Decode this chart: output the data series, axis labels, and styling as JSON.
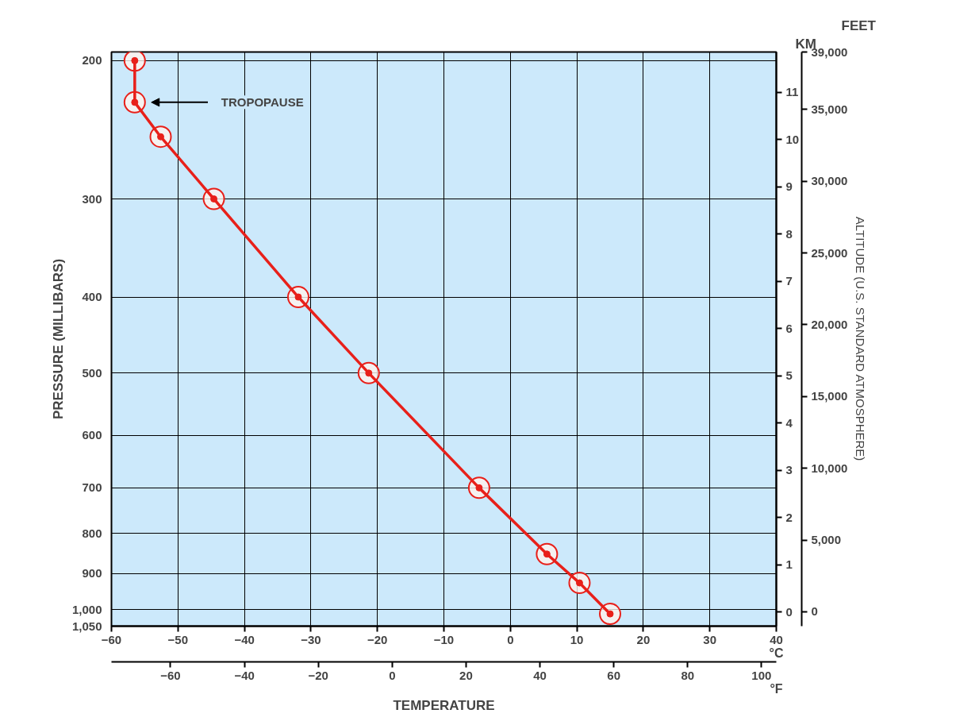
{
  "chart_data": {
    "type": "line",
    "xlabel": "TEMPERATURE",
    "ylabel": "PRESSURE (MILLIBARS)",
    "y3label": "ALTITUDE (U.S. STANDARD ATMOSPHERE)",
    "annotations": [
      "KM",
      "FEET",
      "°C",
      "°F",
      "TROPOPAUSE"
    ],
    "x": [
      15,
      10.4,
      5.5,
      -4.7,
      -21.3,
      -31.9,
      -44.6,
      -52.6,
      -56.5,
      -56.5
    ],
    "values": [
      1013,
      925,
      850,
      700,
      500,
      400,
      300,
      250,
      226,
      200
    ],
    "log": "y",
    "color": "#e8201a",
    "marker": "circle",
    "line_style": "solid",
    "grid": true,
    "xlim": [
      -60,
      40
    ],
    "xticks": [
      -60,
      -50,
      -40,
      -30,
      -20,
      -10,
      0,
      10,
      20,
      30,
      40
    ],
    "x2lim": [
      -76,
      104
    ],
    "x2ticks": [
      -60,
      -40,
      -20,
      0,
      20,
      40,
      60,
      80,
      100
    ],
    "ylim": [
      1050,
      195
    ],
    "yticks": [
      200,
      300,
      400,
      500,
      600,
      700,
      800,
      900,
      {
        "value": 1000,
        "label": "1,000"
      },
      {
        "value": 1050,
        "label": "1,050"
      }
    ],
    "y2lim": [
      -0.3,
      11.85
    ],
    "y2ticks": [
      0,
      1,
      2,
      3,
      4,
      5,
      6,
      7,
      8,
      9,
      10,
      11
    ],
    "y3lim": [
      -1000,
      39000
    ],
    "y3ticks": [
      0,
      {
        "value": 5000,
        "label": "5,000"
      },
      {
        "value": 10000,
        "label": "10,000"
      },
      {
        "value": 15000,
        "label": "15,000"
      },
      {
        "value": 20000,
        "label": "20,000"
      },
      {
        "value": 25000,
        "label": "25,000"
      },
      {
        "value": 30000,
        "label": "30,000"
      },
      {
        "value": 35000,
        "label": "35,000"
      },
      {
        "value": 39000,
        "label": "39,000"
      }
    ]
  }
}
